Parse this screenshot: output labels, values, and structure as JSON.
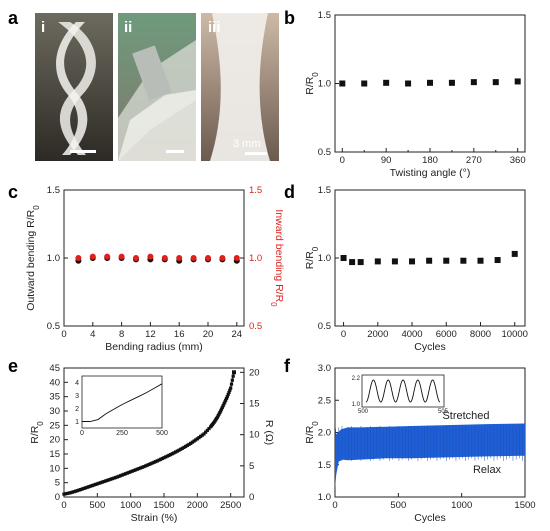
{
  "figure": {
    "panel_labels": [
      "a",
      "b",
      "c",
      "d",
      "e",
      "f"
    ],
    "photo_labels": [
      "i",
      "ii",
      "iii"
    ],
    "scale_bar_text": "3 mm"
  },
  "colors": {
    "marker": "#111111",
    "red": "#e0201b",
    "blue_band": "#1f5fd6"
  },
  "chart_data": [
    {
      "id": "b",
      "type": "scatter",
      "xlabel": "Twisting angle (°)",
      "ylabel": "R/R0",
      "xlim": [
        -15,
        375
      ],
      "ylim": [
        0.5,
        1.5
      ],
      "xticks": [
        0,
        90,
        180,
        270,
        360
      ],
      "xticks_minor": [
        45,
        135,
        225,
        315
      ],
      "yticks": [
        0.5,
        1.0,
        1.5
      ],
      "ytick_labels": [
        "0.5",
        "1.0",
        "1.5"
      ],
      "x": [
        0,
        45,
        90,
        135,
        180,
        225,
        270,
        315,
        360
      ],
      "y": [
        1.0,
        1.0,
        1.005,
        1.0,
        1.005,
        1.005,
        1.01,
        1.01,
        1.015
      ]
    },
    {
      "id": "c",
      "type": "scatter",
      "xlabel": "Bending radius (mm)",
      "ylabel": "Outward bending R/R0",
      "ylabel_right": "Inward bending R/R0",
      "xlim": [
        0,
        25
      ],
      "ylim": [
        0.5,
        1.5
      ],
      "xticks": [
        0,
        4,
        8,
        12,
        16,
        20,
        24
      ],
      "yticks": [
        0.5,
        1.0,
        1.5
      ],
      "ytick_labels": [
        "0.5",
        "1.0",
        "1.5"
      ],
      "series": [
        {
          "name": "Outward bending",
          "color": "#111111",
          "x": [
            2,
            4,
            6,
            8,
            10,
            12,
            14,
            16,
            18,
            20,
            22,
            24
          ],
          "y": [
            0.98,
            1.0,
            1.0,
            1.0,
            0.99,
            0.99,
            0.99,
            0.98,
            0.99,
            0.99,
            0.99,
            0.98
          ]
        },
        {
          "name": "Inward bending",
          "color": "#e0201b",
          "x": [
            2,
            4,
            6,
            8,
            10,
            12,
            14,
            16,
            18,
            20,
            22,
            24
          ],
          "y": [
            1.0,
            1.01,
            1.01,
            1.01,
            1.0,
            1.01,
            1.0,
            1.0,
            1.0,
            1.0,
            1.0,
            1.0
          ]
        }
      ]
    },
    {
      "id": "d",
      "type": "scatter",
      "xlabel": "Cycles",
      "ylabel": "R/R0",
      "xlim": [
        -500,
        10600
      ],
      "ylim": [
        0.5,
        1.5
      ],
      "xticks": [
        0,
        2000,
        4000,
        6000,
        8000,
        10000
      ],
      "yticks": [
        0.5,
        1.0,
        1.5
      ],
      "ytick_labels": [
        "0.5",
        "1.0",
        "1.5"
      ],
      "x": [
        0,
        500,
        1000,
        2000,
        3000,
        4000,
        5000,
        6000,
        7000,
        8000,
        9000,
        10000
      ],
      "y": [
        1.0,
        0.97,
        0.97,
        0.975,
        0.975,
        0.975,
        0.98,
        0.98,
        0.98,
        0.98,
        0.985,
        1.03
      ]
    },
    {
      "id": "e",
      "type": "line",
      "xlabel": "Strain (%)",
      "ylabel": "R/R0",
      "ylabel_right": "R (Ω)",
      "xlim": [
        0,
        2700
      ],
      "ylim": [
        0,
        45
      ],
      "xticks": [
        0,
        500,
        1000,
        1500,
        2000,
        2500
      ],
      "yticks": [
        0,
        5,
        10,
        15,
        20,
        25,
        30,
        35,
        40,
        45
      ],
      "yticks_right": [
        0,
        5,
        10,
        15,
        20
      ],
      "x": [
        0,
        100,
        200,
        300,
        400,
        500,
        600,
        700,
        800,
        900,
        1000,
        1100,
        1200,
        1300,
        1400,
        1500,
        1600,
        1700,
        1800,
        1900,
        2000,
        2100,
        2200,
        2250,
        2300,
        2350,
        2400,
        2450,
        2500,
        2550
      ],
      "y": [
        1.0,
        1.5,
        2.2,
        3.0,
        3.8,
        4.6,
        5.4,
        6.2,
        7.0,
        7.9,
        8.8,
        9.7,
        10.6,
        11.6,
        12.6,
        13.7,
        14.8,
        16.0,
        17.3,
        18.7,
        20.3,
        22.0,
        24.5,
        26.0,
        27.8,
        30.0,
        32.5,
        35.0,
        38.0,
        43.5
      ],
      "inset": {
        "xlim": [
          0,
          500
        ],
        "ylim": [
          0.5,
          4.5
        ],
        "xticks": [
          0,
          250,
          500
        ],
        "yticks": [
          1,
          2,
          3,
          4
        ],
        "x": [
          0,
          50,
          100,
          150,
          200,
          250,
          300,
          350,
          400,
          450,
          500
        ],
        "y": [
          1.0,
          1.0,
          1.15,
          1.6,
          1.95,
          2.3,
          2.6,
          2.9,
          3.2,
          3.55,
          3.9
        ]
      }
    },
    {
      "id": "f",
      "type": "area",
      "xlabel": "Cycles",
      "ylabel": "R/R0",
      "xlim": [
        0,
        1500
      ],
      "ylim": [
        1.0,
        3.0
      ],
      "xticks": [
        0,
        500,
        1000,
        1500
      ],
      "yticks": [
        1.0,
        1.5,
        2.0,
        2.5,
        3.0
      ],
      "ytick_labels": [
        "1.0",
        "1.5",
        "2.0",
        "2.5",
        "3.0"
      ],
      "upper": {
        "x": [
          0,
          20,
          50,
          100,
          200,
          400,
          600,
          800,
          1000,
          1200,
          1500
        ],
        "y": [
          1.95,
          2.0,
          2.05,
          2.08,
          2.08,
          2.09,
          2.1,
          2.11,
          2.12,
          2.13,
          2.14
        ]
      },
      "lower": {
        "x": [
          0,
          10,
          30,
          60,
          100,
          200,
          400,
          600,
          800,
          1000,
          1200,
          1500
        ],
        "y": [
          1.12,
          1.35,
          1.55,
          1.58,
          1.57,
          1.58,
          1.6,
          1.6,
          1.61,
          1.62,
          1.63,
          1.64
        ]
      },
      "annotations": [
        "Stretched",
        "Relax"
      ],
      "inset": {
        "xlim": [
          500,
          505
        ],
        "ylim": [
          1.0,
          2.2
        ],
        "xtick_labels": [
          "500",
          "505"
        ],
        "ytick_labels": [
          "1.0",
          "2.2"
        ],
        "cycles": 5
      }
    }
  ]
}
